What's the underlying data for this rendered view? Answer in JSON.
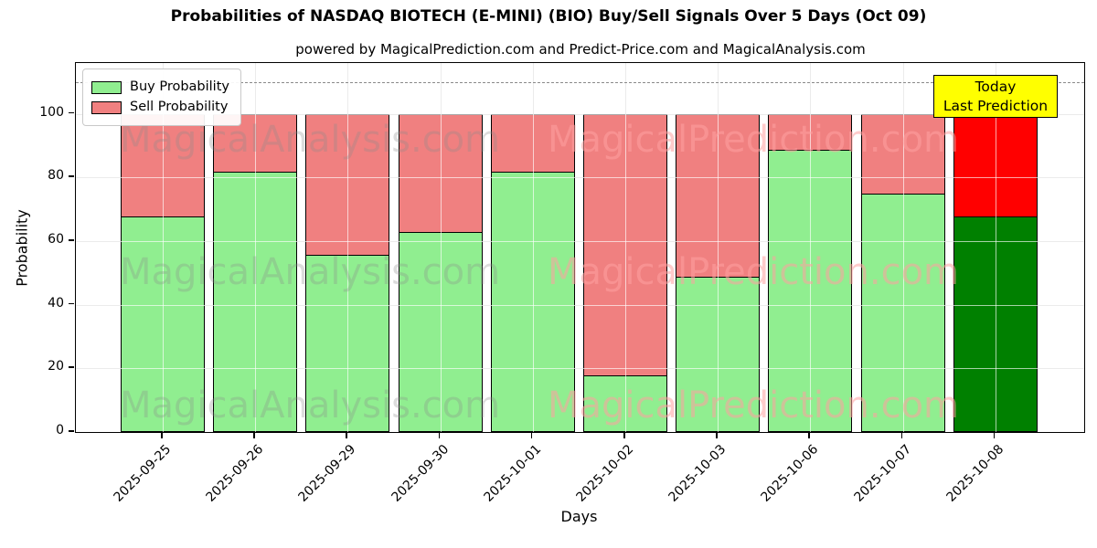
{
  "title": "Probabilities of NASDAQ BIOTECH (E-MINI) (BIO) Buy/Sell Signals Over 5 Days (Oct 09)",
  "subtitle": "powered by MagicalPrediction.com and Predict-Price.com and MagicalAnalysis.com",
  "axes": {
    "ylabel": "Probability",
    "xlabel": "Days",
    "yticks": [
      0,
      20,
      40,
      60,
      80,
      100
    ],
    "ylim": [
      0,
      116
    ],
    "dashed_line_y": 110,
    "grid": true
  },
  "legend": {
    "position": "upper-left",
    "items": [
      {
        "label": "Buy Probability",
        "color": "#90EE90"
      },
      {
        "label": "Sell Probability",
        "color": "#F08080"
      }
    ]
  },
  "annotation": {
    "line1": "Today",
    "line2": "Last Prediction",
    "bg_color": "#ffff00"
  },
  "watermarks": {
    "left_text": "MagicalAnalysis.com",
    "right_text": "MagicalPrediction.com"
  },
  "colors": {
    "buy": "#90EE90",
    "sell": "#F08080",
    "buy_last": "#008000",
    "sell_last": "#FF0000",
    "bar_edge": "#000000"
  },
  "chart_data": {
    "type": "bar",
    "stacked": true,
    "categories": [
      "2025-09-25",
      "2025-09-26",
      "2025-09-29",
      "2025-09-30",
      "2025-10-01",
      "2025-10-02",
      "2025-10-03",
      "2025-10-06",
      "2025-10-07",
      "2025-10-08"
    ],
    "series": [
      {
        "name": "Buy Probability",
        "values": [
          68,
          82,
          56,
          63,
          82,
          18,
          49,
          89,
          75,
          68
        ]
      },
      {
        "name": "Sell Probability",
        "values": [
          32,
          18,
          44,
          37,
          18,
          82,
          51,
          11,
          25,
          32
        ]
      }
    ],
    "highlight_last_bar": true,
    "title": "Probabilities of NASDAQ BIOTECH (E-MINI) (BIO) Buy/Sell Signals Over 5 Days (Oct 09)",
    "xlabel": "Days",
    "ylabel": "Probability",
    "ylim": [
      0,
      116
    ],
    "legend_position": "upper left",
    "grid": true
  }
}
